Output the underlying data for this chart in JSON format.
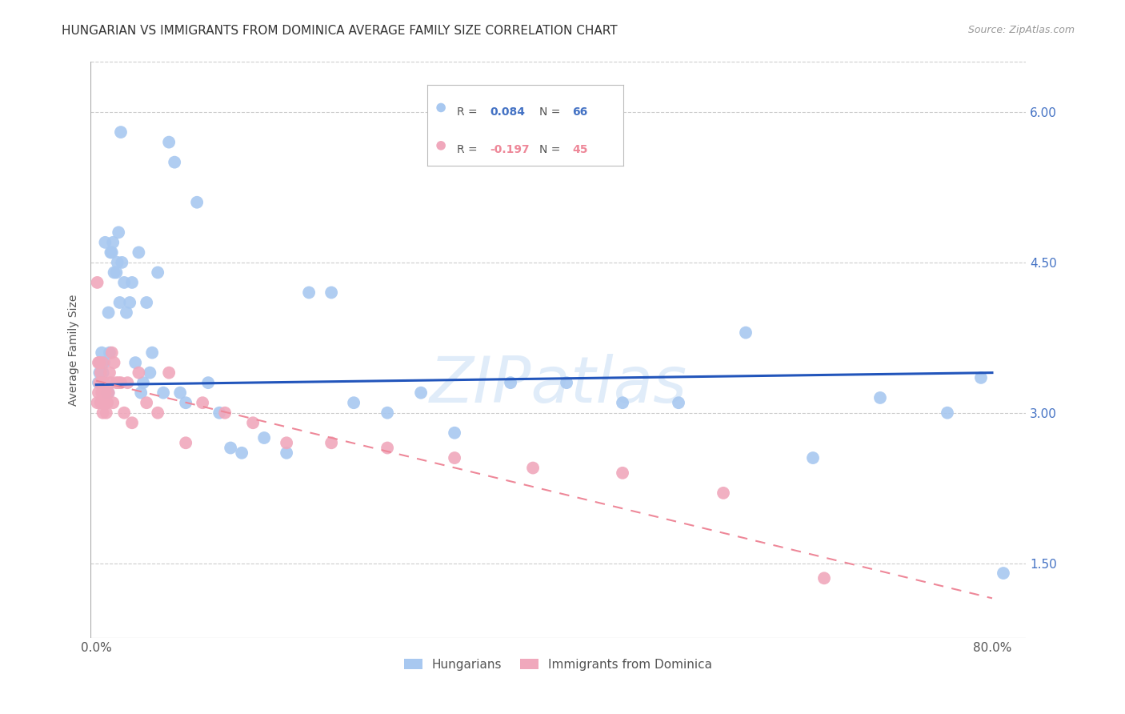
{
  "title": "HUNGARIAN VS IMMIGRANTS FROM DOMINICA AVERAGE FAMILY SIZE CORRELATION CHART",
  "source": "Source: ZipAtlas.com",
  "ylabel": "Average Family Size",
  "yticks": [
    1.5,
    3.0,
    4.5,
    6.0
  ],
  "ymin": 0.75,
  "ymax": 6.5,
  "xmin": -0.005,
  "xmax": 0.83,
  "blue_color": "#a8c8f0",
  "pink_color": "#f0a8bc",
  "line_blue_color": "#2255bb",
  "line_pink_color": "#ee8899",
  "watermark_color": "#cce0f5",
  "background_color": "#ffffff",
  "grid_color": "#cccccc",
  "title_color": "#333333",
  "source_color": "#999999",
  "tick_color": "#4472c4",
  "blue_points_x": [
    0.002,
    0.003,
    0.003,
    0.004,
    0.005,
    0.006,
    0.007,
    0.008,
    0.01,
    0.011,
    0.011,
    0.012,
    0.013,
    0.014,
    0.015,
    0.016,
    0.018,
    0.019,
    0.02,
    0.021,
    0.022,
    0.023,
    0.025,
    0.027,
    0.03,
    0.032,
    0.035,
    0.038,
    0.04,
    0.042,
    0.045,
    0.048,
    0.05,
    0.055,
    0.06,
    0.065,
    0.07,
    0.075,
    0.08,
    0.09,
    0.1,
    0.11,
    0.12,
    0.13,
    0.15,
    0.17,
    0.19,
    0.21,
    0.23,
    0.26,
    0.29,
    0.32,
    0.37,
    0.42,
    0.47,
    0.52,
    0.58,
    0.64,
    0.7,
    0.76,
    0.79,
    0.81
  ],
  "blue_points_y": [
    3.3,
    3.4,
    3.5,
    3.3,
    3.6,
    3.4,
    3.5,
    4.7,
    3.2,
    4.0,
    3.2,
    3.6,
    4.6,
    4.6,
    4.7,
    4.4,
    4.4,
    4.5,
    4.8,
    4.1,
    5.8,
    4.5,
    4.3,
    4.0,
    4.1,
    4.3,
    3.5,
    4.6,
    3.2,
    3.3,
    4.1,
    3.4,
    3.6,
    4.4,
    3.2,
    5.7,
    5.5,
    3.2,
    3.1,
    5.1,
    3.3,
    3.0,
    2.65,
    2.6,
    2.75,
    2.6,
    4.2,
    4.2,
    3.1,
    3.0,
    3.2,
    2.8,
    3.3,
    3.3,
    3.1,
    3.1,
    3.8,
    2.55,
    3.15,
    3.0,
    3.35,
    1.4
  ],
  "pink_points_x": [
    0.001,
    0.001,
    0.002,
    0.002,
    0.003,
    0.003,
    0.004,
    0.004,
    0.005,
    0.005,
    0.006,
    0.006,
    0.007,
    0.007,
    0.008,
    0.009,
    0.01,
    0.011,
    0.012,
    0.013,
    0.014,
    0.015,
    0.016,
    0.018,
    0.02,
    0.022,
    0.025,
    0.028,
    0.032,
    0.038,
    0.045,
    0.055,
    0.065,
    0.08,
    0.095,
    0.115,
    0.14,
    0.17,
    0.21,
    0.26,
    0.32,
    0.39,
    0.47,
    0.56,
    0.65
  ],
  "pink_points_y": [
    4.3,
    3.1,
    3.5,
    3.2,
    3.5,
    3.3,
    3.4,
    3.1,
    3.3,
    3.2,
    3.5,
    3.0,
    3.3,
    3.1,
    3.2,
    3.0,
    3.1,
    3.2,
    3.4,
    3.3,
    3.6,
    3.1,
    3.5,
    3.3,
    3.3,
    3.3,
    3.0,
    3.3,
    2.9,
    3.4,
    3.1,
    3.0,
    3.4,
    2.7,
    3.1,
    3.0,
    2.9,
    2.7,
    2.7,
    2.65,
    2.55,
    2.45,
    2.4,
    2.2,
    1.35
  ],
  "blue_trend_x": [
    0.0,
    0.8
  ],
  "blue_trend_y": [
    3.28,
    3.4
  ],
  "pink_trend_x": [
    0.0,
    0.8
  ],
  "pink_trend_y": [
    3.32,
    1.15
  ],
  "title_fontsize": 11,
  "axis_fontsize": 11,
  "ylabel_fontsize": 10
}
